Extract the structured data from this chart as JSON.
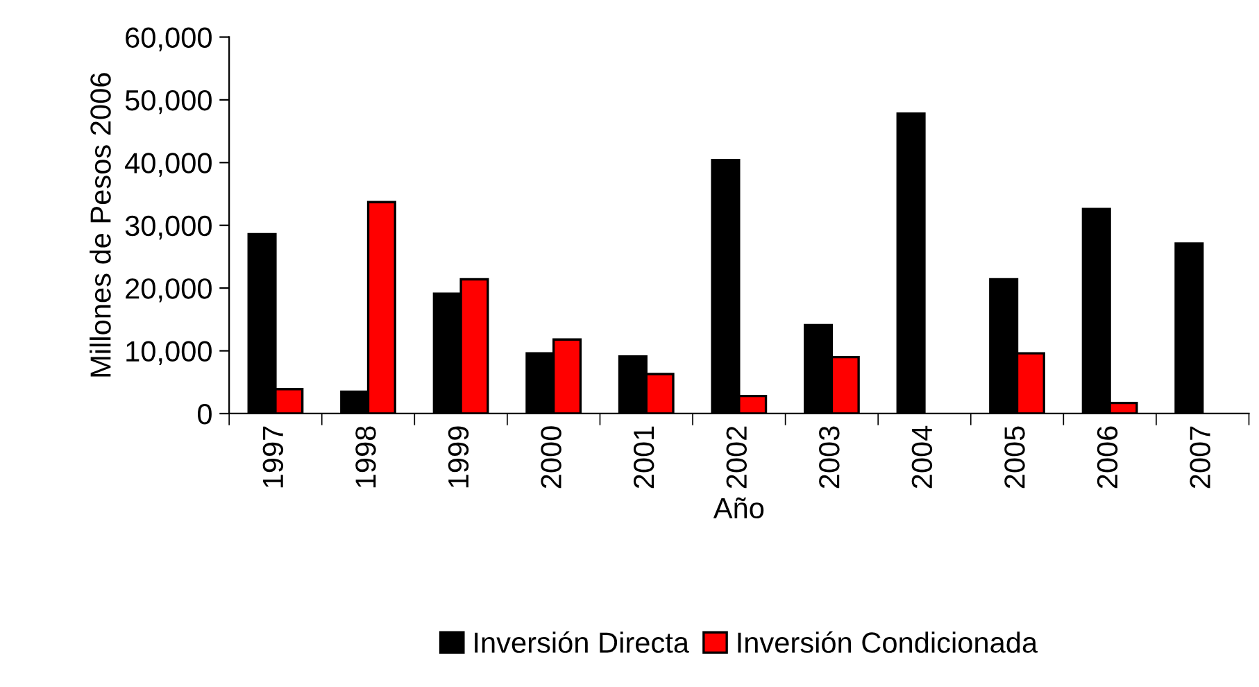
{
  "chart_data": {
    "type": "bar",
    "xlabel": "Año",
    "ylabel": "Millones de Pesos 2006",
    "categories": [
      "1997",
      "1998",
      "1999",
      "2000",
      "2001",
      "2002",
      "2003",
      "2004",
      "2005",
      "2006",
      "2007"
    ],
    "series": [
      {
        "name": "Inversión Directa",
        "color": "#000000",
        "values": [
          28600,
          3500,
          19100,
          9600,
          9100,
          40400,
          14100,
          47800,
          21400,
          32600,
          27100
        ]
      },
      {
        "name": "Inversión Condicionada",
        "color": "#ff0000",
        "values": [
          3900,
          33700,
          21400,
          11800,
          6300,
          2800,
          9000,
          null,
          9600,
          1700,
          null
        ]
      }
    ],
    "ylim": [
      0,
      60000
    ],
    "yticks": [
      {
        "value": 0,
        "label": "0"
      },
      {
        "value": 10000,
        "label": "10,000"
      },
      {
        "value": 20000,
        "label": "20,000"
      },
      {
        "value": 30000,
        "label": "30,000"
      },
      {
        "value": 40000,
        "label": "40,000"
      },
      {
        "value": 50000,
        "label": "50,000"
      },
      {
        "value": 60000,
        "label": "60,000"
      }
    ],
    "grid": false,
    "legend": "bottom"
  }
}
